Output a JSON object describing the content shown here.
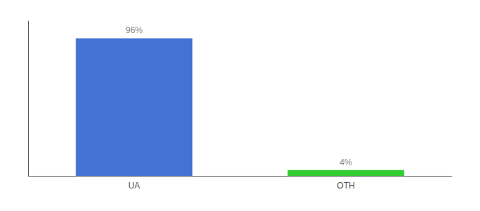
{
  "chart_data": {
    "type": "bar",
    "categories": [
      "UA",
      "OTH"
    ],
    "values": [
      96,
      4
    ],
    "value_labels": [
      "96%",
      "4%"
    ],
    "colors": [
      "#4472d4",
      "#33cc33"
    ],
    "ylim": [
      0,
      108
    ],
    "grid": false,
    "data_labels": true,
    "tick_labels": "x"
  }
}
